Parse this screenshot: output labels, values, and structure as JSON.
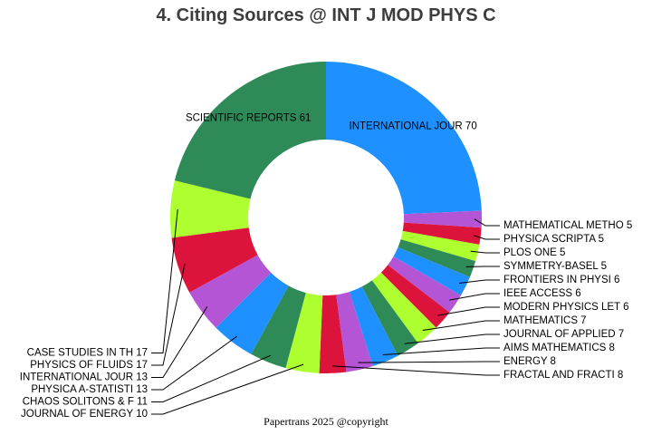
{
  "title": "4. Citing Sources @ INT J MOD PHYS C",
  "footer": "Papertrans 2025 @copyright",
  "chart_data": {
    "type": "pie",
    "donut": true,
    "legend": "none",
    "slices": [
      {
        "label": "INTERNATIONAL JOUR",
        "value": 70,
        "color": "#1e90ff"
      },
      {
        "label": "MATHEMATICAL METHO",
        "value": 5,
        "color": "#b455d6"
      },
      {
        "label": "PHYSICA SCRIPTA",
        "value": 5,
        "color": "#dc143c"
      },
      {
        "label": "PLOS ONE",
        "value": 5,
        "color": "#adff2f"
      },
      {
        "label": "SYMMETRY-BASEL",
        "value": 5,
        "color": "#2e8b57"
      },
      {
        "label": "FRONTIERS IN PHYSI",
        "value": 6,
        "color": "#1e90ff"
      },
      {
        "label": "IEEE ACCESS",
        "value": 6,
        "color": "#b455d6"
      },
      {
        "label": "MODERN PHYSICS LET",
        "value": 6,
        "color": "#dc143c"
      },
      {
        "label": "MATHEMATICS",
        "value": 7,
        "color": "#adff2f"
      },
      {
        "label": "JOURNAL OF APPLIED",
        "value": 7,
        "color": "#2e8b57"
      },
      {
        "label": "AIMS MATHEMATICS",
        "value": 8,
        "color": "#1e90ff"
      },
      {
        "label": "ENERGY",
        "value": 8,
        "color": "#b455d6"
      },
      {
        "label": "FRACTAL AND FRACTI",
        "value": 8,
        "color": "#dc143c"
      },
      {
        "label": "JOURNAL OF ENERGY ",
        "value": 10,
        "color": "#adff2f"
      },
      {
        "label": "CHAOS SOLITONS & F",
        "value": 11,
        "color": "#2e8b57"
      },
      {
        "label": "PHYSICA A-STATISTI",
        "value": 13,
        "color": "#1e90ff"
      },
      {
        "label": "INTERNATIONAL JOUR",
        "value": 13,
        "color": "#b455d6"
      },
      {
        "label": "PHYSICS OF FLUIDS",
        "value": 17,
        "color": "#dc143c"
      },
      {
        "label": "CASE STUDIES IN TH",
        "value": 17,
        "color": "#adff2f"
      },
      {
        "label": "SCIENTIFIC REPORTS",
        "value": 61,
        "color": "#2e8b57"
      }
    ]
  }
}
